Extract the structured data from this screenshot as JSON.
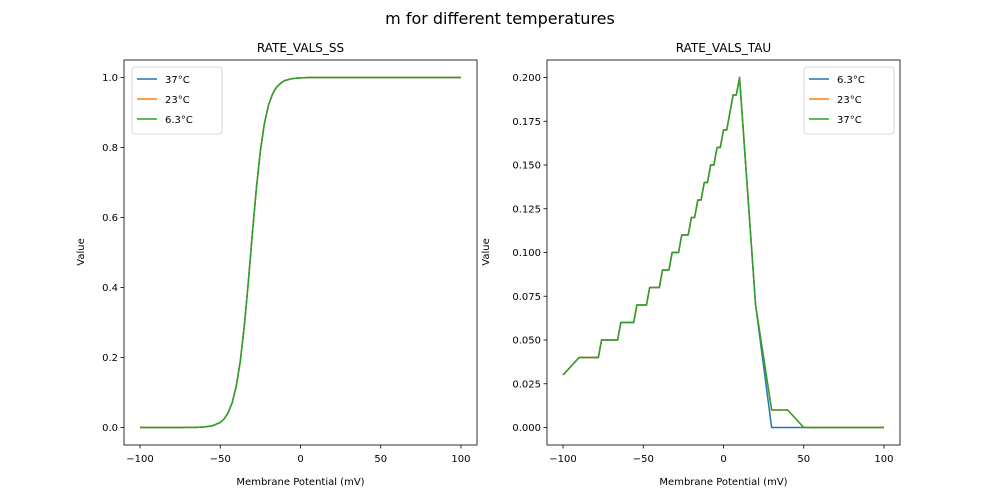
{
  "figure_title": "m for different temperatures",
  "colors": {
    "blue": "#1f77b4",
    "orange": "#ff7f0e",
    "green": "#2ca02c"
  },
  "chart_data": [
    {
      "type": "line",
      "title": "RATE_VALS_SS",
      "xlabel": "Membrane Potential (mV)",
      "ylabel": "Value",
      "xlim": [
        -110,
        110
      ],
      "ylim": [
        -0.05,
        1.05
      ],
      "xticks": [
        -100,
        -50,
        0,
        50,
        100
      ],
      "xtick_labels": [
        "−100",
        "−50",
        "0",
        "50",
        "100"
      ],
      "yticks": [
        0,
        0.2,
        0.4,
        0.6,
        0.8,
        1.0
      ],
      "ytick_labels": [
        "0.0",
        "0.2",
        "0.4",
        "0.6",
        "0.8",
        "1.0"
      ],
      "grid": false,
      "legend_position": "upper-left",
      "series": [
        {
          "name": "37°C",
          "color": "#1f77b4",
          "x": [
            -100,
            -90,
            -80,
            -75,
            -70,
            -65,
            -60,
            -55,
            -50,
            -47.5,
            -45,
            -42.5,
            -40,
            -37.5,
            -35,
            -32.5,
            -30,
            -27.5,
            -25,
            -22.5,
            -20,
            -17.5,
            -15,
            -12.5,
            -10,
            -5,
            0,
            5,
            10,
            20,
            30,
            40,
            50,
            60,
            70,
            80,
            90,
            100
          ],
          "y": [
            0,
            0,
            0,
            0.0001,
            0.0002,
            0.0005,
            0.0016,
            0.0048,
            0.0145,
            0.025,
            0.043,
            0.072,
            0.119,
            0.19,
            0.291,
            0.416,
            0.555,
            0.683,
            0.791,
            0.869,
            0.92,
            0.952,
            0.972,
            0.983,
            0.991,
            0.997,
            0.999,
            1,
            1,
            1,
            1,
            1,
            1,
            1,
            1,
            1,
            1,
            1
          ]
        },
        {
          "name": "23°C",
          "color": "#ff7f0e",
          "x": [
            -100,
            -90,
            -80,
            -75,
            -70,
            -65,
            -60,
            -55,
            -50,
            -47.5,
            -45,
            -42.5,
            -40,
            -37.5,
            -35,
            -32.5,
            -30,
            -27.5,
            -25,
            -22.5,
            -20,
            -17.5,
            -15,
            -12.5,
            -10,
            -5,
            0,
            5,
            10,
            20,
            30,
            40,
            50,
            60,
            70,
            80,
            90,
            100
          ],
          "y": [
            0,
            0,
            0,
            0.0001,
            0.0002,
            0.0005,
            0.0016,
            0.0048,
            0.0145,
            0.025,
            0.043,
            0.072,
            0.119,
            0.19,
            0.291,
            0.416,
            0.555,
            0.683,
            0.791,
            0.869,
            0.92,
            0.952,
            0.972,
            0.983,
            0.991,
            0.997,
            0.999,
            1,
            1,
            1,
            1,
            1,
            1,
            1,
            1,
            1,
            1,
            1
          ]
        },
        {
          "name": "6.3°C",
          "color": "#2ca02c",
          "x": [
            -100,
            -90,
            -80,
            -75,
            -70,
            -65,
            -60,
            -55,
            -50,
            -47.5,
            -45,
            -42.5,
            -40,
            -37.5,
            -35,
            -32.5,
            -30,
            -27.5,
            -25,
            -22.5,
            -20,
            -17.5,
            -15,
            -12.5,
            -10,
            -5,
            0,
            5,
            10,
            20,
            30,
            40,
            50,
            60,
            70,
            80,
            90,
            100
          ],
          "y": [
            0,
            0,
            0,
            0.0001,
            0.0002,
            0.0005,
            0.0016,
            0.0048,
            0.0145,
            0.025,
            0.043,
            0.072,
            0.119,
            0.19,
            0.291,
            0.416,
            0.555,
            0.683,
            0.791,
            0.869,
            0.92,
            0.952,
            0.972,
            0.983,
            0.991,
            0.997,
            0.999,
            1,
            1,
            1,
            1,
            1,
            1,
            1,
            1,
            1,
            1,
            1
          ]
        }
      ]
    },
    {
      "type": "line",
      "title": "RATE_VALS_TAU",
      "xlabel": "Membrane Potential (mV)",
      "ylabel": "Value",
      "xlim": [
        -110,
        110
      ],
      "ylim": [
        -0.01,
        0.21
      ],
      "xticks": [
        -100,
        -50,
        0,
        50,
        100
      ],
      "xtick_labels": [
        "−100",
        "−50",
        "0",
        "50",
        "100"
      ],
      "yticks": [
        0,
        0.025,
        0.05,
        0.075,
        0.1,
        0.125,
        0.15,
        0.175,
        0.2
      ],
      "ytick_labels": [
        "0.000",
        "0.025",
        "0.050",
        "0.075",
        "0.100",
        "0.125",
        "0.150",
        "0.175",
        "0.200"
      ],
      "grid": false,
      "legend_position": "upper-right",
      "series": [
        {
          "name": "6.3°C",
          "color": "#1f77b4",
          "x": [
            -100,
            -90,
            -78,
            -76,
            -66,
            -64,
            -56,
            -54,
            -48,
            -46,
            -40,
            -38,
            -34,
            -32,
            -28,
            -26,
            -22,
            -20,
            -18,
            -16,
            -14,
            -12,
            -10,
            -8,
            -6,
            -4,
            -2,
            0,
            2,
            6,
            8,
            10,
            20,
            30,
            100
          ],
          "y": [
            0.03,
            0.04,
            0.04,
            0.05,
            0.05,
            0.06,
            0.06,
            0.07,
            0.07,
            0.08,
            0.08,
            0.09,
            0.09,
            0.1,
            0.1,
            0.11,
            0.11,
            0.12,
            0.12,
            0.13,
            0.13,
            0.14,
            0.14,
            0.15,
            0.15,
            0.16,
            0.16,
            0.17,
            0.17,
            0.19,
            0.19,
            0.2,
            0.07,
            0,
            0
          ]
        },
        {
          "name": "23°C",
          "color": "#ff7f0e",
          "x": [
            -100,
            -90,
            -78,
            -76,
            -66,
            -64,
            -56,
            -54,
            -48,
            -46,
            -40,
            -38,
            -34,
            -32,
            -28,
            -26,
            -22,
            -20,
            -18,
            -16,
            -14,
            -12,
            -10,
            -8,
            -6,
            -4,
            -2,
            0,
            2,
            6,
            8,
            10,
            20,
            30,
            40,
            50,
            100
          ],
          "y": [
            0.03,
            0.04,
            0.04,
            0.05,
            0.05,
            0.06,
            0.06,
            0.07,
            0.07,
            0.08,
            0.08,
            0.09,
            0.09,
            0.1,
            0.1,
            0.11,
            0.11,
            0.12,
            0.12,
            0.13,
            0.13,
            0.14,
            0.14,
            0.15,
            0.15,
            0.16,
            0.16,
            0.17,
            0.17,
            0.19,
            0.19,
            0.2,
            0.07,
            0.01,
            0.01,
            0,
            0
          ]
        },
        {
          "name": "37°C",
          "color": "#2ca02c",
          "x": [
            -100,
            -90,
            -78,
            -76,
            -66,
            -64,
            -56,
            -54,
            -48,
            -46,
            -40,
            -38,
            -34,
            -32,
            -28,
            -26,
            -22,
            -20,
            -18,
            -16,
            -14,
            -12,
            -10,
            -8,
            -6,
            -4,
            -2,
            0,
            2,
            6,
            8,
            10,
            20,
            30,
            40,
            50,
            100
          ],
          "y": [
            0.03,
            0.04,
            0.04,
            0.05,
            0.05,
            0.06,
            0.06,
            0.07,
            0.07,
            0.08,
            0.08,
            0.09,
            0.09,
            0.1,
            0.1,
            0.11,
            0.11,
            0.12,
            0.12,
            0.13,
            0.13,
            0.14,
            0.14,
            0.15,
            0.15,
            0.16,
            0.16,
            0.17,
            0.17,
            0.19,
            0.19,
            0.2,
            0.07,
            0.01,
            0.01,
            0,
            0
          ]
        }
      ]
    }
  ]
}
